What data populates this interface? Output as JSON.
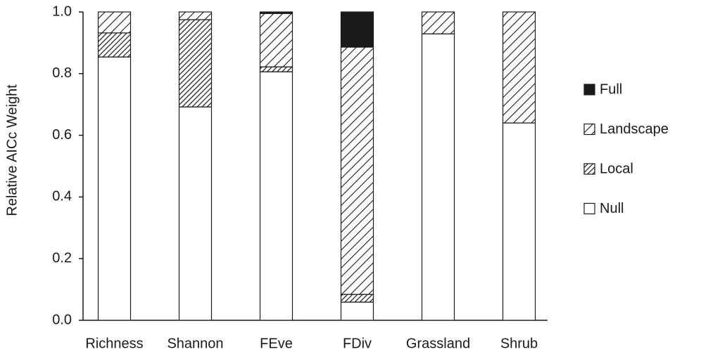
{
  "chart_data": {
    "type": "stacked-bar",
    "y_label": "Relative AICc Weight",
    "categories": [
      "Richness",
      "Shannon",
      "FEve",
      "FDiv",
      "Grassland",
      "Shrub"
    ],
    "series": [
      {
        "name": "Null",
        "color": "#1a1a1a",
        "pattern": "none",
        "values": [
          0.854,
          0.692,
          0.806,
          0.059,
          0.929,
          0.64
        ]
      },
      {
        "name": "Local",
        "color": "#1a1a1a",
        "pattern": "dense-hatch",
        "values": [
          0.078,
          0.283,
          0.016,
          0.025,
          0,
          0
        ]
      },
      {
        "name": "Landscape",
        "color": "#1a1a1a",
        "pattern": "hatch",
        "values": [
          0.068,
          0.025,
          0.173,
          0.802,
          0.071,
          0.36
        ]
      },
      {
        "name": "Full",
        "color": "#1a1a1a",
        "pattern": "solid",
        "values": [
          0,
          0,
          0.005,
          0.114,
          0,
          0
        ]
      }
    ],
    "ylim": [
      0,
      1
    ],
    "yticks": [
      {
        "value": 0,
        "label": "0.0"
      },
      {
        "value": 0.2,
        "label": "0.2"
      },
      {
        "value": 0.4,
        "label": "0.4"
      },
      {
        "value": 0.6,
        "label": "0.6"
      },
      {
        "value": 0.8,
        "label": "0.8"
      },
      {
        "value": 1,
        "label": "1.0"
      }
    ],
    "legend_position": "right"
  }
}
